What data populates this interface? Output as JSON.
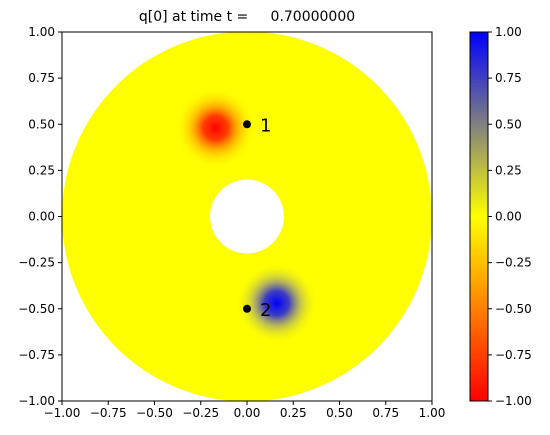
{
  "chart_data": {
    "type": "heatmap",
    "title": "q[0] at time t =     0.70000000",
    "xlabel": "",
    "ylabel": "",
    "xlim": [
      -1.0,
      1.0
    ],
    "ylim": [
      -1.0,
      1.0
    ],
    "x_ticks": [
      "−1.00",
      "−0.75",
      "−0.50",
      "−0.25",
      "0.00",
      "0.25",
      "0.50",
      "0.75",
      "1.00"
    ],
    "y_ticks": [
      "−1.00",
      "−0.75",
      "−0.50",
      "−0.25",
      "0.00",
      "0.25",
      "0.50",
      "0.75",
      "1.00"
    ],
    "grid": false,
    "domain": {
      "shape": "annulus",
      "center": [
        0.0,
        0.0
      ],
      "outer_radius": 1.0,
      "inner_radius": 0.2
    },
    "field": {
      "background_value": 0.0,
      "blobs": [
        {
          "center": [
            -0.17,
            0.48
          ],
          "peak": -1.0,
          "width": 0.1
        },
        {
          "center": [
            0.16,
            -0.47
          ],
          "peak": 1.0,
          "width": 0.1
        }
      ]
    },
    "markers": [
      {
        "x": 0.0,
        "y": 0.5,
        "label": "1"
      },
      {
        "x": 0.0,
        "y": -0.5,
        "label": "2"
      }
    ],
    "colorbar": {
      "vmin": -1.0,
      "vmax": 1.0,
      "ticks": [
        "1.00",
        "0.75",
        "0.50",
        "0.25",
        "0.00",
        "−0.25",
        "−0.50",
        "−0.75",
        "−1.00"
      ],
      "colors": {
        "low": "#ff0000",
        "mid": "#ffff00",
        "high": "#0000ff"
      }
    }
  }
}
